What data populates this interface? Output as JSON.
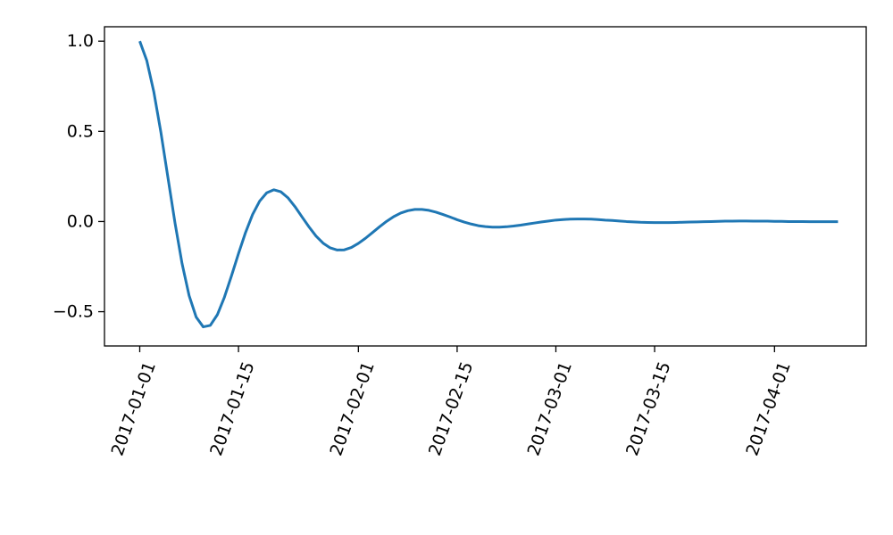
{
  "chart_data": {
    "type": "line",
    "title": "",
    "xlabel": "",
    "ylabel": "",
    "grid": false,
    "xlim": [
      "2016-12-27",
      "2017-04-14"
    ],
    "ylim": [
      -0.69,
      1.08
    ],
    "x_ticks": [
      "2017-01-01",
      "2017-01-15",
      "2017-02-01",
      "2017-02-15",
      "2017-03-01",
      "2017-03-15",
      "2017-04-01"
    ],
    "y_ticks": [
      1.0,
      0.5,
      0.0,
      -0.5
    ],
    "y_tick_labels": [
      "1.0",
      "0.5",
      "0.0",
      "−0.5"
    ],
    "series": [
      {
        "color": "#1f77b4",
        "x": [
          "2017-01-01",
          "2017-01-02",
          "2017-01-03",
          "2017-01-04",
          "2017-01-05",
          "2017-01-06",
          "2017-01-07",
          "2017-01-08",
          "2017-01-09",
          "2017-01-10",
          "2017-01-11",
          "2017-01-12",
          "2017-01-13",
          "2017-01-14",
          "2017-01-15",
          "2017-01-16",
          "2017-01-17",
          "2017-01-18",
          "2017-01-19",
          "2017-01-20",
          "2017-01-21",
          "2017-01-22",
          "2017-01-23",
          "2017-01-24",
          "2017-01-25",
          "2017-01-26",
          "2017-01-27",
          "2017-01-28",
          "2017-01-29",
          "2017-01-30",
          "2017-01-31",
          "2017-02-01",
          "2017-02-02",
          "2017-02-03",
          "2017-02-04",
          "2017-02-05",
          "2017-02-06",
          "2017-02-07",
          "2017-02-08",
          "2017-02-09",
          "2017-02-10",
          "2017-02-11",
          "2017-02-12",
          "2017-02-13",
          "2017-02-14",
          "2017-02-15",
          "2017-02-16",
          "2017-02-17",
          "2017-02-18",
          "2017-02-19",
          "2017-02-20",
          "2017-02-21",
          "2017-02-22",
          "2017-02-23",
          "2017-02-24",
          "2017-02-25",
          "2017-02-26",
          "2017-02-27",
          "2017-02-28",
          "2017-03-01",
          "2017-03-02",
          "2017-03-03",
          "2017-03-04",
          "2017-03-05",
          "2017-03-06",
          "2017-03-07",
          "2017-03-08",
          "2017-03-09",
          "2017-03-10",
          "2017-03-11",
          "2017-03-12",
          "2017-03-13",
          "2017-03-14",
          "2017-03-15",
          "2017-03-16",
          "2017-03-17",
          "2017-03-18",
          "2017-03-19",
          "2017-03-20",
          "2017-03-21",
          "2017-03-22",
          "2017-03-23",
          "2017-03-24",
          "2017-03-25",
          "2017-03-26",
          "2017-03-27",
          "2017-03-28",
          "2017-03-29",
          "2017-03-30",
          "2017-03-31",
          "2017-04-01",
          "2017-04-02",
          "2017-04-03",
          "2017-04-04",
          "2017-04-05",
          "2017-04-06",
          "2017-04-07",
          "2017-04-08",
          "2017-04-09",
          "2017-04-10"
        ],
        "y": [
          1.0,
          0.892,
          0.718,
          0.494,
          0.243,
          -0.008,
          -0.233,
          -0.411,
          -0.53,
          -0.584,
          -0.576,
          -0.517,
          -0.42,
          -0.302,
          -0.178,
          -0.061,
          0.039,
          0.113,
          0.159,
          0.176,
          0.165,
          0.132,
          0.083,
          0.026,
          -0.03,
          -0.081,
          -0.12,
          -0.146,
          -0.158,
          -0.157,
          -0.144,
          -0.121,
          -0.093,
          -0.061,
          -0.029,
          0.001,
          0.027,
          0.047,
          0.06,
          0.067,
          0.067,
          0.062,
          0.052,
          0.039,
          0.025,
          0.01,
          -0.003,
          -0.014,
          -0.023,
          -0.028,
          -0.031,
          -0.031,
          -0.029,
          -0.025,
          -0.02,
          -0.014,
          -0.008,
          -0.002,
          0.003,
          0.008,
          0.011,
          0.013,
          0.014,
          0.014,
          0.013,
          0.011,
          0.008,
          0.006,
          0.003,
          0.0,
          -0.002,
          -0.004,
          -0.005,
          -0.006,
          -0.006,
          -0.006,
          -0.005,
          -0.004,
          -0.003,
          -0.002,
          -0.001,
          0.0,
          0.001,
          0.002,
          0.002,
          0.003,
          0.003,
          0.002,
          0.002,
          0.002,
          0.001,
          0.001,
          0.0,
          0.0,
          0.0,
          -0.001,
          -0.001,
          -0.001,
          -0.001,
          -0.001
        ]
      }
    ]
  }
}
